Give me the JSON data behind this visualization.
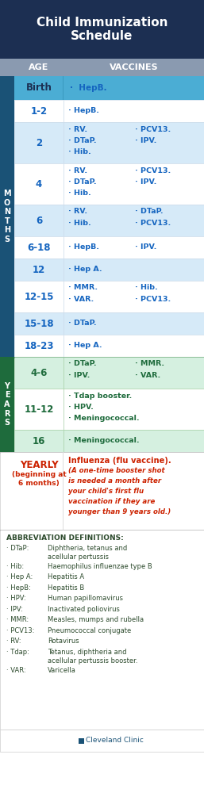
{
  "title": "Child Immunization\nSchedule",
  "title_bg": "#1c2f52",
  "title_color": "#ffffff",
  "header_bg": "#8a9ab0",
  "header_color": "#ffffff",
  "months_bg": "#1a5276",
  "years_bg": "#1e6b3c",
  "birth_bg": "#4badd4",
  "birth_age_color": "#1c2f52",
  "birth_vaccine_color": "#1c2f52",
  "rows_months": [
    {
      "age": "1-2",
      "col1": "· HepB.",
      "col2": "",
      "col3": "",
      "col4": "",
      "bg": "#ffffff",
      "nlines": 1
    },
    {
      "age": "2",
      "col1": "· RV.",
      "col2": "· PCV13.",
      "col3": "· DTaP.",
      "col4": "· IPV.",
      "bg": "#d6eaf8",
      "nlines": 3,
      "col1b": "· Hib.",
      "col2b": ""
    },
    {
      "age": "4",
      "col1": "· RV.",
      "col2": "· PCV13.",
      "col3": "· DTaP.",
      "col4": "· IPV.",
      "bg": "#ffffff",
      "nlines": 3,
      "col1b": "· Hib.",
      "col2b": ""
    },
    {
      "age": "6",
      "col1": "· RV.",
      "col2": "· DTaP.",
      "col3": "· Hib.",
      "col4": "· PCV13.",
      "bg": "#d6eaf8",
      "nlines": 2
    },
    {
      "age": "6-18",
      "col1": "· HepB.",
      "col2": "· IPV.",
      "col3": "",
      "col4": "",
      "bg": "#ffffff",
      "nlines": 1
    },
    {
      "age": "12",
      "col1": "· Hep A.",
      "col2": "",
      "col3": "",
      "col4": "",
      "bg": "#d6eaf8",
      "nlines": 1
    },
    {
      "age": "12-15",
      "col1": "· MMR.",
      "col2": "· Hib.",
      "col3": "· VAR.",
      "col4": "· PCV13.",
      "bg": "#ffffff",
      "nlines": 2
    },
    {
      "age": "15-18",
      "col1": "· DTaP.",
      "col2": "",
      "col3": "",
      "col4": "",
      "bg": "#d6eaf8",
      "nlines": 1
    },
    {
      "age": "18-23",
      "col1": "· Hep A.",
      "col2": "",
      "col3": "",
      "col4": "",
      "bg": "#ffffff",
      "nlines": 1
    }
  ],
  "rows_years": [
    {
      "age": "4-6",
      "col1": "· DTaP.",
      "col2": "· MMR.",
      "col3": "· IPV.",
      "col4": "· VAR.",
      "bg": "#d5f0e0",
      "nlines": 2
    },
    {
      "age": "11-12",
      "col1": "· Tdap booster.",
      "col2": "",
      "col3": "· HPV.",
      "col4": "",
      "bg": "#ffffff",
      "nlines": 3,
      "col1c": "· Meningococcal."
    },
    {
      "age": "16",
      "col1": "· Meningococcal.",
      "col2": "",
      "col3": "",
      "col4": "",
      "bg": "#d5f0e0",
      "nlines": 1
    }
  ],
  "yearly_age_line1": "YEARLY",
  "yearly_age_line2": "(beginning at",
  "yearly_age_line3": "6 months)",
  "yearly_vac_line1": "Influenza (flu vaccine).",
  "yearly_vac_rest": "(A one-time booster shot\nis needed a month after\nyour child's first flu\nvaccination if they are\nyounger than 9 years old.)",
  "yearly_age_color": "#cc2200",
  "yearly_vac_color": "#cc2200",
  "abbrev_bg": "#ffffff",
  "abbrev_title": "ABBREVIATION DEFINITIONS:",
  "abbrev_color": "#2c4a2c",
  "abbrev_entries": [
    [
      "· DTaP:",
      "Diphtheria, tetanus and\nacellular pertussis"
    ],
    [
      "· Hib:",
      "Haemophilus influenzae type B"
    ],
    [
      "· Hep A:",
      "Hepatitis A"
    ],
    [
      "· HepB:",
      "Hepatitis B"
    ],
    [
      "· HPV:",
      "Human papillomavirus"
    ],
    [
      "· IPV:",
      "Inactivated poliovirus"
    ],
    [
      "· MMR:",
      "Measles, mumps and rubella"
    ],
    [
      "· PCV13:",
      "Pneumococcal conjugate"
    ],
    [
      "· RV:",
      "Rotavirus"
    ],
    [
      "· Tdap:",
      "Tetanus, diphtheria and\nacellular pertussis booster."
    ],
    [
      "· VAR:",
      "Varicella"
    ]
  ],
  "footer_color": "#1a5276"
}
